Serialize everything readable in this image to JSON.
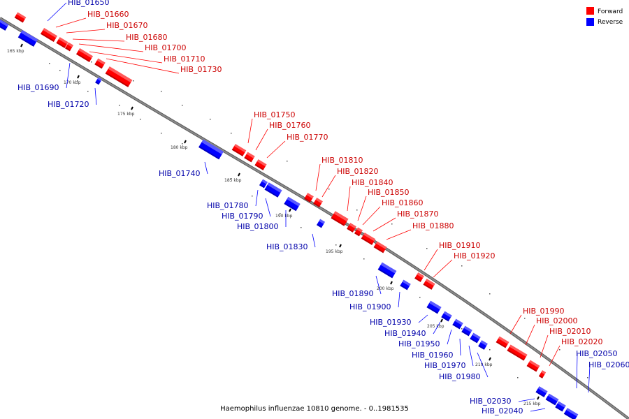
{
  "legend": {
    "forward_label": "Forward",
    "reverse_label": "Reverse"
  },
  "colors": {
    "forward": "#ff0000",
    "reverse": "#0000ff",
    "backbone": "#8a8a8a"
  },
  "caption": "Haemophilus influenzae 10810 genome. - 0..1981535",
  "scale_labels": [
    "165 kbp",
    "170 kbp",
    "175 kbp",
    "180 kbp",
    "185 kbp",
    "190 kbp",
    "195 kbp",
    "200 kbp",
    "205 kbp",
    "210 kbp",
    "215 kbp"
  ],
  "forward_genes": [
    "HIB_01660",
    "HIB_01670",
    "HIB_01680",
    "HIB_01700",
    "HIB_01710",
    "HIB_01730",
    "HIB_01750",
    "HIB_01760",
    "HIB_01770",
    "HIB_01810",
    "HIB_01820",
    "HIB_01840",
    "HIB_01850",
    "HIB_01860",
    "HIB_01870",
    "HIB_01880",
    "HIB_01910",
    "HIB_01920",
    "HIB_01990",
    "HIB_02000",
    "HIB_02010",
    "HIB_02020"
  ],
  "reverse_genes": [
    "HIB_01650",
    "HIB_01690",
    "HIB_01720",
    "HIB_01740",
    "HIB_01780",
    "HIB_01790",
    "HIB_01800",
    "HIB_01830",
    "HIB_01890",
    "HIB_01900",
    "HIB_01930",
    "HIB_01940",
    "HIB_01950",
    "HIB_01960",
    "HIB_01970",
    "HIB_01980",
    "HIB_02030",
    "HIB_02040",
    "HIB_02050",
    "HIB_02060"
  ]
}
